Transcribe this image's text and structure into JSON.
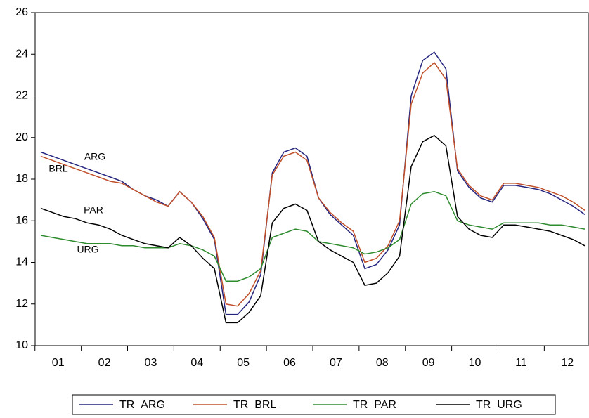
{
  "chart_data": {
    "type": "line",
    "categories": [
      null,
      "01",
      null,
      null,
      null,
      "02",
      null,
      null,
      null,
      "03",
      null,
      null,
      null,
      "04",
      null,
      null,
      null,
      "05",
      null,
      null,
      null,
      "06",
      null,
      null,
      null,
      "07",
      null,
      null,
      null,
      "08",
      null,
      null,
      null,
      "09",
      null,
      null,
      null,
      "10",
      null,
      null,
      null,
      "11",
      null,
      null,
      null,
      "12",
      null,
      null
    ],
    "series": [
      {
        "name": "TR_ARG",
        "color": "#24247f",
        "values": [
          19.3,
          19.1,
          18.9,
          18.7,
          18.5,
          18.3,
          18.1,
          17.9,
          17.5,
          17.2,
          17.0,
          16.7,
          17.4,
          16.9,
          16.1,
          15.1,
          11.5,
          11.5,
          12.1,
          13.4,
          18.3,
          19.3,
          19.5,
          19.1,
          17.1,
          16.3,
          15.8,
          15.3,
          13.7,
          13.9,
          14.6,
          15.8,
          22.0,
          23.7,
          24.1,
          23.3,
          18.4,
          17.6,
          17.1,
          16.9,
          17.7,
          17.7,
          17.6,
          17.5,
          17.3,
          17.0,
          16.7,
          16.3
        ]
      },
      {
        "name": "TR_BRL",
        "color": "#c0502a",
        "values": [
          19.1,
          18.9,
          18.7,
          18.5,
          18.3,
          18.1,
          17.9,
          17.8,
          17.5,
          17.2,
          16.9,
          16.7,
          17.4,
          16.9,
          16.2,
          15.2,
          12.0,
          11.9,
          12.5,
          13.6,
          18.2,
          19.1,
          19.3,
          18.9,
          17.1,
          16.4,
          15.9,
          15.5,
          14.0,
          14.2,
          14.8,
          16.0,
          21.6,
          23.1,
          23.6,
          22.8,
          18.5,
          17.7,
          17.2,
          17.0,
          17.8,
          17.8,
          17.7,
          17.6,
          17.4,
          17.2,
          16.9,
          16.5
        ]
      },
      {
        "name": "TR_PAR",
        "color": "#2e8b2e",
        "values": [
          15.3,
          15.2,
          15.1,
          15.0,
          14.9,
          14.9,
          14.9,
          14.8,
          14.8,
          14.7,
          14.7,
          14.7,
          14.9,
          14.8,
          14.6,
          14.3,
          13.1,
          13.1,
          13.3,
          13.7,
          15.2,
          15.4,
          15.6,
          15.5,
          15.0,
          14.9,
          14.8,
          14.7,
          14.4,
          14.5,
          14.7,
          15.1,
          16.8,
          17.3,
          17.4,
          17.2,
          16.0,
          15.8,
          15.7,
          15.6,
          15.9,
          15.9,
          15.9,
          15.9,
          15.8,
          15.8,
          15.7,
          15.6
        ]
      },
      {
        "name": "TR_URG",
        "color": "#000000",
        "values": [
          16.6,
          16.4,
          16.2,
          16.1,
          15.9,
          15.8,
          15.6,
          15.3,
          15.1,
          14.9,
          14.8,
          14.7,
          15.2,
          14.8,
          14.2,
          13.7,
          11.1,
          11.1,
          11.6,
          12.4,
          15.9,
          16.6,
          16.8,
          16.5,
          15.0,
          14.6,
          14.3,
          14.0,
          12.9,
          13.0,
          13.5,
          14.3,
          18.6,
          19.8,
          20.1,
          19.6,
          16.2,
          15.6,
          15.3,
          15.2,
          15.8,
          15.8,
          15.7,
          15.6,
          15.5,
          15.3,
          15.1,
          14.8
        ]
      }
    ],
    "annotations": [
      "ARG",
      "BRL",
      "PAR",
      "URG"
    ],
    "ylim": [
      10,
      26
    ],
    "yticks": [
      10,
      12,
      14,
      16,
      18,
      20,
      22,
      24,
      26
    ]
  }
}
